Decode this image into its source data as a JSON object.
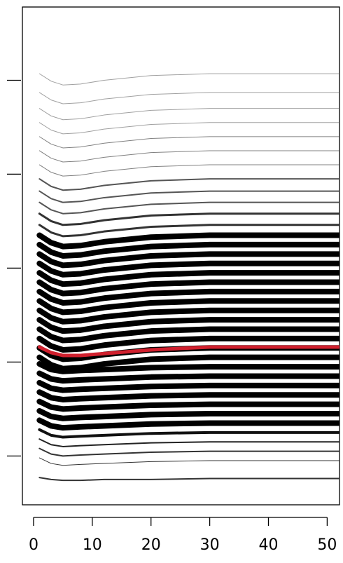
{
  "chart_data": {
    "type": "line",
    "x": [
      1,
      3,
      5,
      8,
      12,
      20,
      30,
      52
    ],
    "xlim": [
      -1.9,
      52.1
    ],
    "xticks": [
      0,
      10,
      20,
      30,
      40,
      50
    ],
    "ylim": [
      0.48,
      5.78
    ],
    "yticks": [
      1,
      2,
      3,
      4,
      5
    ],
    "series": [
      {
        "color": "#a0a0a0",
        "width": 1,
        "values": [
          5.07,
          4.99,
          4.95,
          4.96,
          5.0,
          5.05,
          5.07,
          5.07
        ]
      },
      {
        "color": "#a0a0a0",
        "width": 1,
        "values": [
          4.87,
          4.79,
          4.75,
          4.76,
          4.8,
          4.85,
          4.87,
          4.87
        ]
      },
      {
        "color": "#a0a0a0",
        "width": 1,
        "values": [
          4.7,
          4.62,
          4.58,
          4.59,
          4.63,
          4.68,
          4.7,
          4.7
        ]
      },
      {
        "color": "#a0a0a0",
        "width": 1,
        "values": [
          4.55,
          4.47,
          4.43,
          4.44,
          4.48,
          4.53,
          4.55,
          4.55
        ]
      },
      {
        "color": "#808080",
        "width": 1,
        "values": [
          4.4,
          4.32,
          4.28,
          4.29,
          4.33,
          4.38,
          4.4,
          4.4
        ]
      },
      {
        "color": "#808080",
        "width": 1,
        "values": [
          4.25,
          4.17,
          4.13,
          4.14,
          4.18,
          4.23,
          4.25,
          4.25
        ]
      },
      {
        "color": "#808080",
        "width": 1,
        "values": [
          4.1,
          4.02,
          3.98,
          3.99,
          4.03,
          4.08,
          4.1,
          4.1
        ]
      },
      {
        "color": "#555555",
        "width": 2,
        "values": [
          3.95,
          3.87,
          3.83,
          3.84,
          3.88,
          3.93,
          3.95,
          3.95
        ]
      },
      {
        "color": "#555555",
        "width": 2,
        "values": [
          3.82,
          3.74,
          3.7,
          3.71,
          3.75,
          3.8,
          3.82,
          3.82
        ]
      },
      {
        "color": "#555555",
        "width": 2,
        "values": [
          3.7,
          3.62,
          3.58,
          3.59,
          3.63,
          3.68,
          3.7,
          3.7
        ]
      },
      {
        "color": "#333333",
        "width": 3,
        "values": [
          3.58,
          3.5,
          3.46,
          3.47,
          3.51,
          3.56,
          3.58,
          3.58
        ]
      },
      {
        "color": "#333333",
        "width": 3,
        "values": [
          3.46,
          3.38,
          3.34,
          3.35,
          3.39,
          3.44,
          3.46,
          3.46
        ]
      },
      {
        "color": "#000000",
        "width": 8,
        "values": [
          3.35,
          3.27,
          3.23,
          3.24,
          3.28,
          3.33,
          3.35,
          3.35
        ]
      },
      {
        "color": "#000000",
        "width": 8,
        "values": [
          3.25,
          3.17,
          3.13,
          3.14,
          3.18,
          3.23,
          3.25,
          3.25
        ]
      },
      {
        "color": "#000000",
        "width": 8,
        "values": [
          3.15,
          3.07,
          3.03,
          3.04,
          3.08,
          3.13,
          3.15,
          3.15
        ]
      },
      {
        "color": "#000000",
        "width": 8,
        "values": [
          3.05,
          2.97,
          2.93,
          2.94,
          2.98,
          3.03,
          3.05,
          3.05
        ]
      },
      {
        "color": "#000000",
        "width": 8,
        "values": [
          2.95,
          2.87,
          2.83,
          2.84,
          2.88,
          2.93,
          2.95,
          2.95
        ]
      },
      {
        "color": "#000000",
        "width": 8,
        "values": [
          2.85,
          2.77,
          2.73,
          2.74,
          2.78,
          2.83,
          2.85,
          2.85
        ]
      },
      {
        "color": "#000000",
        "width": 8,
        "values": [
          2.75,
          2.67,
          2.63,
          2.64,
          2.68,
          2.73,
          2.75,
          2.75
        ]
      },
      {
        "color": "#000000",
        "width": 8,
        "values": [
          2.65,
          2.57,
          2.53,
          2.54,
          2.58,
          2.63,
          2.65,
          2.65
        ]
      },
      {
        "color": "#000000",
        "width": 8,
        "values": [
          2.55,
          2.47,
          2.43,
          2.44,
          2.48,
          2.53,
          2.55,
          2.55
        ]
      },
      {
        "color": "#000000",
        "width": 8,
        "values": [
          2.45,
          2.37,
          2.33,
          2.34,
          2.38,
          2.43,
          2.45,
          2.45
        ]
      },
      {
        "color": "#000000",
        "width": 8,
        "values": [
          2.35,
          2.27,
          2.23,
          2.24,
          2.28,
          2.33,
          2.35,
          2.35
        ]
      },
      {
        "color": "#000000",
        "width": 8,
        "values": [
          2.25,
          2.17,
          2.13,
          2.14,
          2.18,
          2.23,
          2.25,
          2.25
        ]
      },
      {
        "color": "#000000",
        "width": 8,
        "values": [
          2.15,
          2.07,
          2.03,
          2.04,
          2.08,
          2.13,
          2.15,
          2.15
        ]
      },
      {
        "color": "#000000",
        "width": 8,
        "values": [
          2.05,
          1.97,
          1.93,
          1.94,
          1.98,
          2.03,
          2.05,
          2.05
        ]
      },
      {
        "color": "#000000",
        "width": 8,
        "values": [
          1.98,
          1.92,
          1.9,
          1.91,
          1.92,
          1.94,
          1.95,
          1.95
        ]
      },
      {
        "color": "#000000",
        "width": 8,
        "values": [
          1.88,
          1.82,
          1.8,
          1.81,
          1.82,
          1.84,
          1.85,
          1.85
        ]
      },
      {
        "color": "#000000",
        "width": 8,
        "values": [
          1.78,
          1.72,
          1.7,
          1.71,
          1.72,
          1.74,
          1.75,
          1.75
        ]
      },
      {
        "color": "#000000",
        "width": 8,
        "values": [
          1.68,
          1.62,
          1.6,
          1.61,
          1.62,
          1.64,
          1.65,
          1.65
        ]
      },
      {
        "color": "#000000",
        "width": 8,
        "values": [
          1.58,
          1.52,
          1.5,
          1.51,
          1.52,
          1.54,
          1.55,
          1.55
        ]
      },
      {
        "color": "#000000",
        "width": 8,
        "values": [
          1.48,
          1.42,
          1.4,
          1.41,
          1.42,
          1.44,
          1.45,
          1.45
        ]
      },
      {
        "color": "#000000",
        "width": 8,
        "values": [
          1.38,
          1.32,
          1.3,
          1.31,
          1.32,
          1.34,
          1.35,
          1.35
        ]
      },
      {
        "color": "#111111",
        "width": 4,
        "values": [
          1.28,
          1.22,
          1.2,
          1.21,
          1.22,
          1.24,
          1.25,
          1.25
        ]
      },
      {
        "color": "#222222",
        "width": 2,
        "values": [
          1.18,
          1.12,
          1.1,
          1.11,
          1.12,
          1.14,
          1.15,
          1.15
        ]
      },
      {
        "color": "#333333",
        "width": 2,
        "values": [
          1.08,
          1.02,
          1.0,
          1.01,
          1.02,
          1.04,
          1.05,
          1.05
        ]
      },
      {
        "color": "#333333",
        "width": 1,
        "values": [
          0.98,
          0.92,
          0.9,
          0.91,
          0.92,
          0.94,
          0.95,
          0.95
        ]
      },
      {
        "color": "#333333",
        "width": 2,
        "values": [
          0.77,
          0.75,
          0.74,
          0.74,
          0.75,
          0.75,
          0.76,
          0.76
        ]
      },
      {
        "color": "#d0202e",
        "width": 5,
        "values": [
          2.16,
          2.1,
          2.07,
          2.07,
          2.09,
          2.13,
          2.16,
          2.16
        ]
      }
    ]
  }
}
